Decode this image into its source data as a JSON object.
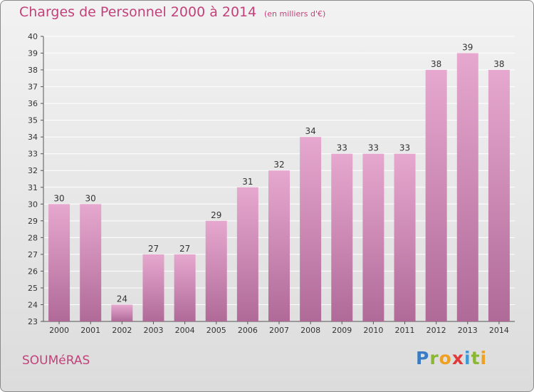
{
  "header": {
    "title": "Charges de Personnel 2000 à 2014",
    "subtitle": "(en milliers d'€)"
  },
  "footer": {
    "commune": "SOUMéRAS",
    "logo_text": "Proxiti"
  },
  "colors": {
    "title": "#c2417a",
    "bar_top": "#e6a8cf",
    "bar_bottom": "#b06a98",
    "grid": "#ffffff",
    "axis": "#555555"
  },
  "chart_data": {
    "type": "bar",
    "categories": [
      "2000",
      "2001",
      "2002",
      "2003",
      "2004",
      "2005",
      "2006",
      "2007",
      "2008",
      "2009",
      "2010",
      "2011",
      "2012",
      "2013",
      "2014"
    ],
    "values": [
      30,
      30,
      24,
      27,
      27,
      29,
      31,
      32,
      34,
      33,
      33,
      33,
      38,
      39,
      38
    ],
    "data_labels": [
      "30",
      "30",
      "24",
      "27",
      "27",
      "29",
      "31",
      "32",
      "34",
      "33",
      "33",
      "33",
      "38",
      "39",
      "38"
    ],
    "ylim": [
      23,
      40
    ],
    "yticks": [
      "23",
      "24",
      "25",
      "26",
      "27",
      "28",
      "29",
      "30",
      "31",
      "32",
      "33",
      "34",
      "35",
      "36",
      "37",
      "38",
      "39",
      "40"
    ],
    "grid": true
  }
}
